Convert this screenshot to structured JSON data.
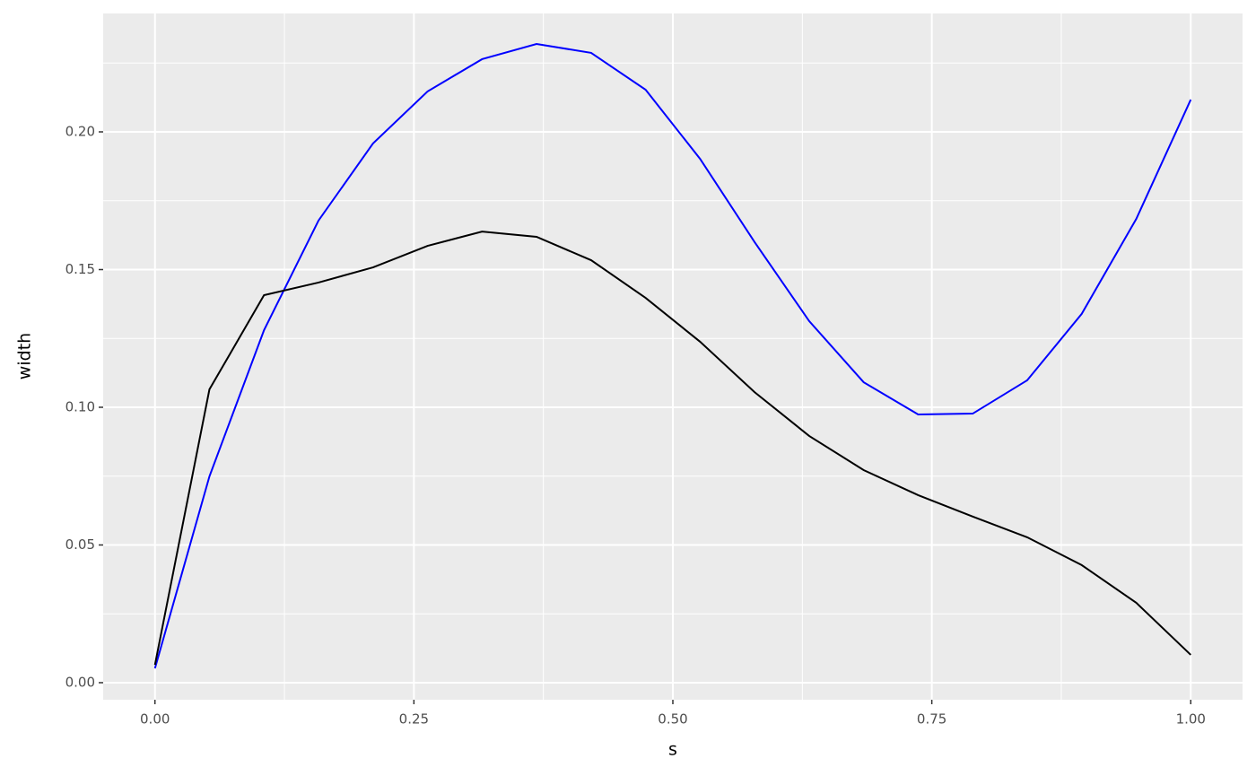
{
  "chart_data": {
    "type": "line",
    "x_label": "s",
    "y_label": "width",
    "x": [
      0,
      0.0526,
      0.1053,
      0.1579,
      0.2105,
      0.2632,
      0.3158,
      0.3684,
      0.4211,
      0.4737,
      0.5263,
      0.5789,
      0.6316,
      0.6842,
      0.7368,
      0.7895,
      0.8421,
      0.8947,
      0.9474,
      1
    ],
    "series": [
      {
        "color": "#0000ff",
        "values": [
          0.0052,
          0.0749,
          0.128,
          0.1678,
          0.1958,
          0.2147,
          0.2264,
          0.2319,
          0.2287,
          0.2153,
          0.1902,
          0.16,
          0.1313,
          0.1091,
          0.0974,
          0.0977,
          0.1098,
          0.1339,
          0.1684,
          0.2117
        ]
      },
      {
        "color": "#000000",
        "values": [
          0.0065,
          0.1065,
          0.1407,
          0.1453,
          0.1508,
          0.1586,
          0.1638,
          0.1619,
          0.1534,
          0.1397,
          0.1238,
          0.1055,
          0.0896,
          0.0772,
          0.0681,
          0.0603,
          0.0528,
          0.0427,
          0.029,
          0.0101
        ]
      }
    ],
    "xlim": [
      -0.05,
      1.05
    ],
    "ylim": [
      -0.0062,
      0.243
    ],
    "xticks": [
      {
        "value": 0,
        "label": "0.00"
      },
      {
        "value": 0.25,
        "label": "0.25"
      },
      {
        "value": 0.5,
        "label": "0.50"
      },
      {
        "value": 0.75,
        "label": "0.75"
      },
      {
        "value": 1,
        "label": "1.00"
      }
    ],
    "yticks": [
      {
        "value": 0,
        "label": "0.00"
      },
      {
        "value": 0.05,
        "label": "0.05"
      },
      {
        "value": 0.1,
        "label": "0.10"
      },
      {
        "value": 0.15,
        "label": "0.15"
      },
      {
        "value": 0.2,
        "label": "0.20"
      }
    ],
    "grid": true,
    "panel_color": "#ebebeb"
  }
}
